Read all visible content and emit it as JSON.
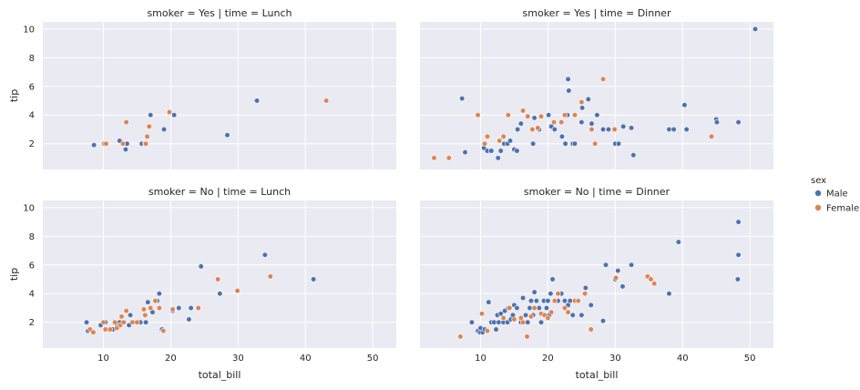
{
  "chart_data": {
    "type": "scatter",
    "legend": {
      "title": "sex",
      "placement": "right",
      "entries": [
        {
          "name": "Male",
          "color": "#4c72b0"
        },
        {
          "name": "Female",
          "color": "#dd8452"
        }
      ]
    },
    "xlabel": "total_bill",
    "ylabel": "tip",
    "xlim": [
      1,
      53.5
    ],
    "ylim": [
      0.2,
      10.5
    ],
    "xticks": [
      10,
      20,
      30,
      40,
      50
    ],
    "yticks": [
      2,
      4,
      6,
      8,
      10
    ],
    "grid": true,
    "sharex": true,
    "sharey": true,
    "facets": [
      {
        "title": "smoker = Yes | time = Lunch",
        "row": 0,
        "col": 0,
        "series": [
          {
            "name": "Male",
            "points": [
              [
                8.6,
                1.9
              ],
              [
                12.4,
                2.2
              ],
              [
                13.0,
                2.0
              ],
              [
                13.3,
                1.6
              ],
              [
                13.5,
                2.0
              ],
              [
                15.7,
                2.0
              ],
              [
                16.2,
                2.0
              ],
              [
                17.0,
                4.0
              ],
              [
                19.0,
                3.0
              ],
              [
                20.5,
                4.0
              ],
              [
                28.4,
                2.6
              ],
              [
                32.8,
                5.0
              ]
            ]
          },
          {
            "name": "Female",
            "points": [
              [
                10.1,
                2.0
              ],
              [
                10.4,
                2.0
              ],
              [
                12.9,
                2.0
              ],
              [
                13.4,
                3.5
              ],
              [
                16.3,
                2.0
              ],
              [
                16.5,
                2.5
              ],
              [
                16.8,
                3.2
              ],
              [
                19.8,
                4.2
              ],
              [
                43.1,
                5.0
              ]
            ]
          }
        ]
      },
      {
        "title": "smoker = Yes | time = Dinner",
        "row": 0,
        "col": 1,
        "series": [
          {
            "name": "Male",
            "points": [
              [
                7.25,
                5.15
              ],
              [
                7.7,
                1.4
              ],
              [
                10.5,
                1.7
              ],
              [
                10.7,
                2.0
              ],
              [
                11.0,
                1.5
              ],
              [
                11.6,
                1.5
              ],
              [
                12.6,
                1.0
              ],
              [
                13.0,
                1.5
              ],
              [
                13.5,
                2.0
              ],
              [
                14.0,
                2.0
              ],
              [
                14.4,
                2.2
              ],
              [
                15.0,
                1.6
              ],
              [
                15.4,
                1.5
              ],
              [
                15.5,
                3.0
              ],
              [
                16.0,
                3.4
              ],
              [
                17.8,
                2.0
              ],
              [
                18.0,
                3.8
              ],
              [
                18.7,
                3.0
              ],
              [
                20.1,
                4.0
              ],
              [
                20.5,
                3.2
              ],
              [
                21.0,
                3.0
              ],
              [
                22.1,
                2.5
              ],
              [
                22.6,
                2.0
              ],
              [
                22.9,
                4.0
              ],
              [
                23.0,
                6.5
              ],
              [
                23.1,
                5.7
              ],
              [
                23.7,
                2.0
              ],
              [
                24.0,
                2.0
              ],
              [
                25.0,
                3.5
              ],
              [
                25.1,
                4.5
              ],
              [
                26.0,
                5.1
              ],
              [
                26.5,
                3.4
              ],
              [
                27.3,
                4.0
              ],
              [
                28.2,
                3.0
              ],
              [
                29.0,
                3.0
              ],
              [
                30.0,
                2.0
              ],
              [
                30.5,
                2.0
              ],
              [
                31.2,
                3.2
              ],
              [
                32.4,
                3.1
              ],
              [
                32.7,
                1.2
              ],
              [
                38.0,
                3.0
              ],
              [
                38.7,
                3.0
              ],
              [
                40.3,
                4.7
              ],
              [
                40.6,
                3.0
              ],
              [
                45.0,
                3.7
              ],
              [
                45.1,
                3.5
              ],
              [
                48.3,
                3.5
              ],
              [
                50.8,
                10.0
              ]
            ]
          },
          {
            "name": "Female",
            "points": [
              [
                3.1,
                1.0
              ],
              [
                5.3,
                1.0
              ],
              [
                9.6,
                4.0
              ],
              [
                10.6,
                2.0
              ],
              [
                11.0,
                2.5
              ],
              [
                12.8,
                2.2
              ],
              [
                13.4,
                2.5
              ],
              [
                14.1,
                4.0
              ],
              [
                16.3,
                4.3
              ],
              [
                17.0,
                3.9
              ],
              [
                17.7,
                3.0
              ],
              [
                18.5,
                3.1
              ],
              [
                19.0,
                3.9
              ],
              [
                20.9,
                3.5
              ],
              [
                22.0,
                3.5
              ],
              [
                22.5,
                4.0
              ],
              [
                24.0,
                4.0
              ],
              [
                25.0,
                4.9
              ],
              [
                26.5,
                3.0
              ],
              [
                27.0,
                2.0
              ],
              [
                28.2,
                6.5
              ],
              [
                29.9,
                3.0
              ],
              [
                44.3,
                2.5
              ]
            ]
          }
        ]
      },
      {
        "title": "smoker = No | time = Lunch",
        "row": 1,
        "col": 0,
        "series": [
          {
            "name": "Male",
            "points": [
              [
                7.5,
                2.0
              ],
              [
                7.7,
                1.4
              ],
              [
                9.6,
                1.8
              ],
              [
                10.3,
                2.0
              ],
              [
                11.4,
                1.5
              ],
              [
                12.0,
                1.8
              ],
              [
                12.4,
                2.0
              ],
              [
                13.1,
                2.0
              ],
              [
                13.8,
                1.8
              ],
              [
                14.0,
                2.5
              ],
              [
                14.5,
                2.0
              ],
              [
                15.5,
                2.0
              ],
              [
                16.3,
                2.0
              ],
              [
                16.6,
                3.4
              ],
              [
                17.3,
                2.7
              ],
              [
                18.0,
                3.5
              ],
              [
                18.3,
                4.0
              ],
              [
                18.7,
                1.5
              ],
              [
                20.3,
                2.8
              ],
              [
                21.2,
                3.0
              ],
              [
                22.7,
                2.2
              ],
              [
                23.0,
                3.0
              ],
              [
                24.5,
                5.9
              ],
              [
                27.3,
                4.0
              ],
              [
                34.0,
                6.7
              ],
              [
                41.2,
                5.0
              ]
            ]
          },
          {
            "name": "Female",
            "points": [
              [
                8.0,
                1.5
              ],
              [
                8.5,
                1.3
              ],
              [
                10.0,
                2.0
              ],
              [
                10.3,
                1.5
              ],
              [
                11.0,
                1.5
              ],
              [
                11.7,
                2.0
              ],
              [
                12.0,
                1.6
              ],
              [
                12.5,
                1.8
              ],
              [
                12.7,
                2.4
              ],
              [
                13.0,
                2.0
              ],
              [
                13.4,
                2.8
              ],
              [
                14.3,
                2.0
              ],
              [
                15.0,
                2.0
              ],
              [
                16.0,
                2.9
              ],
              [
                16.2,
                2.5
              ],
              [
                17.0,
                3.0
              ],
              [
                17.7,
                3.5
              ],
              [
                18.3,
                3.0
              ],
              [
                18.9,
                1.4
              ],
              [
                20.3,
                2.9
              ],
              [
                24.1,
                3.0
              ],
              [
                27.0,
                5.0
              ],
              [
                29.9,
                4.2
              ],
              [
                34.8,
                5.2
              ]
            ]
          }
        ]
      },
      {
        "title": "smoker = No | time = Dinner",
        "row": 1,
        "col": 1,
        "series": [
          {
            "name": "Male",
            "points": [
              [
                8.7,
                2.0
              ],
              [
                9.6,
                1.4
              ],
              [
                9.9,
                1.3
              ],
              [
                10.0,
                1.6
              ],
              [
                10.3,
                1.3
              ],
              [
                10.6,
                1.5
              ],
              [
                11.2,
                3.4
              ],
              [
                11.6,
                2.0
              ],
              [
                12.0,
                2.0
              ],
              [
                12.3,
                1.5
              ],
              [
                12.5,
                2.5
              ],
              [
                12.7,
                2.0
              ],
              [
                13.0,
                2.6
              ],
              [
                13.4,
                2.0
              ],
              [
                13.6,
                2.8
              ],
              [
                14.0,
                2.0
              ],
              [
                14.1,
                3.0
              ],
              [
                14.5,
                2.2
              ],
              [
                14.8,
                2.5
              ],
              [
                15.0,
                3.2
              ],
              [
                15.4,
                3.0
              ],
              [
                16.0,
                2.0
              ],
              [
                16.3,
                3.7
              ],
              [
                16.7,
                2.5
              ],
              [
                17.0,
                2.0
              ],
              [
                17.3,
                3.0
              ],
              [
                17.5,
                3.5
              ],
              [
                17.8,
                2.5
              ],
              [
                18.0,
                4.1
              ],
              [
                18.3,
                3.5
              ],
              [
                18.7,
                3.0
              ],
              [
                19.0,
                2.0
              ],
              [
                19.4,
                3.5
              ],
              [
                19.8,
                3.0
              ],
              [
                20.0,
                3.5
              ],
              [
                20.2,
                2.5
              ],
              [
                20.4,
                4.0
              ],
              [
                20.7,
                5.0
              ],
              [
                21.0,
                3.5
              ],
              [
                21.5,
                3.5
              ],
              [
                22.0,
                4.0
              ],
              [
                22.5,
                3.5
              ],
              [
                23.0,
                3.2
              ],
              [
                23.3,
                3.5
              ],
              [
                23.7,
                2.5
              ],
              [
                24.0,
                3.5
              ],
              [
                24.5,
                3.5
              ],
              [
                25.0,
                2.5
              ],
              [
                25.6,
                4.4
              ],
              [
                26.4,
                3.2
              ],
              [
                28.2,
                2.1
              ],
              [
                28.6,
                6.0
              ],
              [
                30.0,
                5.0
              ],
              [
                30.4,
                5.6
              ],
              [
                31.1,
                4.5
              ],
              [
                32.4,
                6.0
              ],
              [
                38.0,
                4.0
              ],
              [
                39.4,
                7.6
              ],
              [
                48.2,
                5.0
              ],
              [
                48.3,
                9.0
              ],
              [
                48.3,
                6.7
              ]
            ]
          },
          {
            "name": "Female",
            "points": [
              [
                7.0,
                1.0
              ],
              [
                10.2,
                2.6
              ],
              [
                11.0,
                1.4
              ],
              [
                13.4,
                2.3
              ],
              [
                14.3,
                3.0
              ],
              [
                15.0,
                2.2
              ],
              [
                16.0,
                2.3
              ],
              [
                16.3,
                2.0
              ],
              [
                16.9,
                1.0
              ],
              [
                17.5,
                2.4
              ],
              [
                18.0,
                3.0
              ],
              [
                19.0,
                2.6
              ],
              [
                19.5,
                2.5
              ],
              [
                20.0,
                2.3
              ],
              [
                20.5,
                2.7
              ],
              [
                21.0,
                3.5
              ],
              [
                21.5,
                4.0
              ],
              [
                22.5,
                3.0
              ],
              [
                23.0,
                2.7
              ],
              [
                24.0,
                3.5
              ],
              [
                24.5,
                3.5
              ],
              [
                25.5,
                4.0
              ],
              [
                26.4,
                1.5
              ],
              [
                30.1,
                5.1
              ],
              [
                34.8,
                5.2
              ],
              [
                35.3,
                5.0
              ],
              [
                35.8,
                4.7
              ]
            ]
          }
        ]
      }
    ]
  }
}
